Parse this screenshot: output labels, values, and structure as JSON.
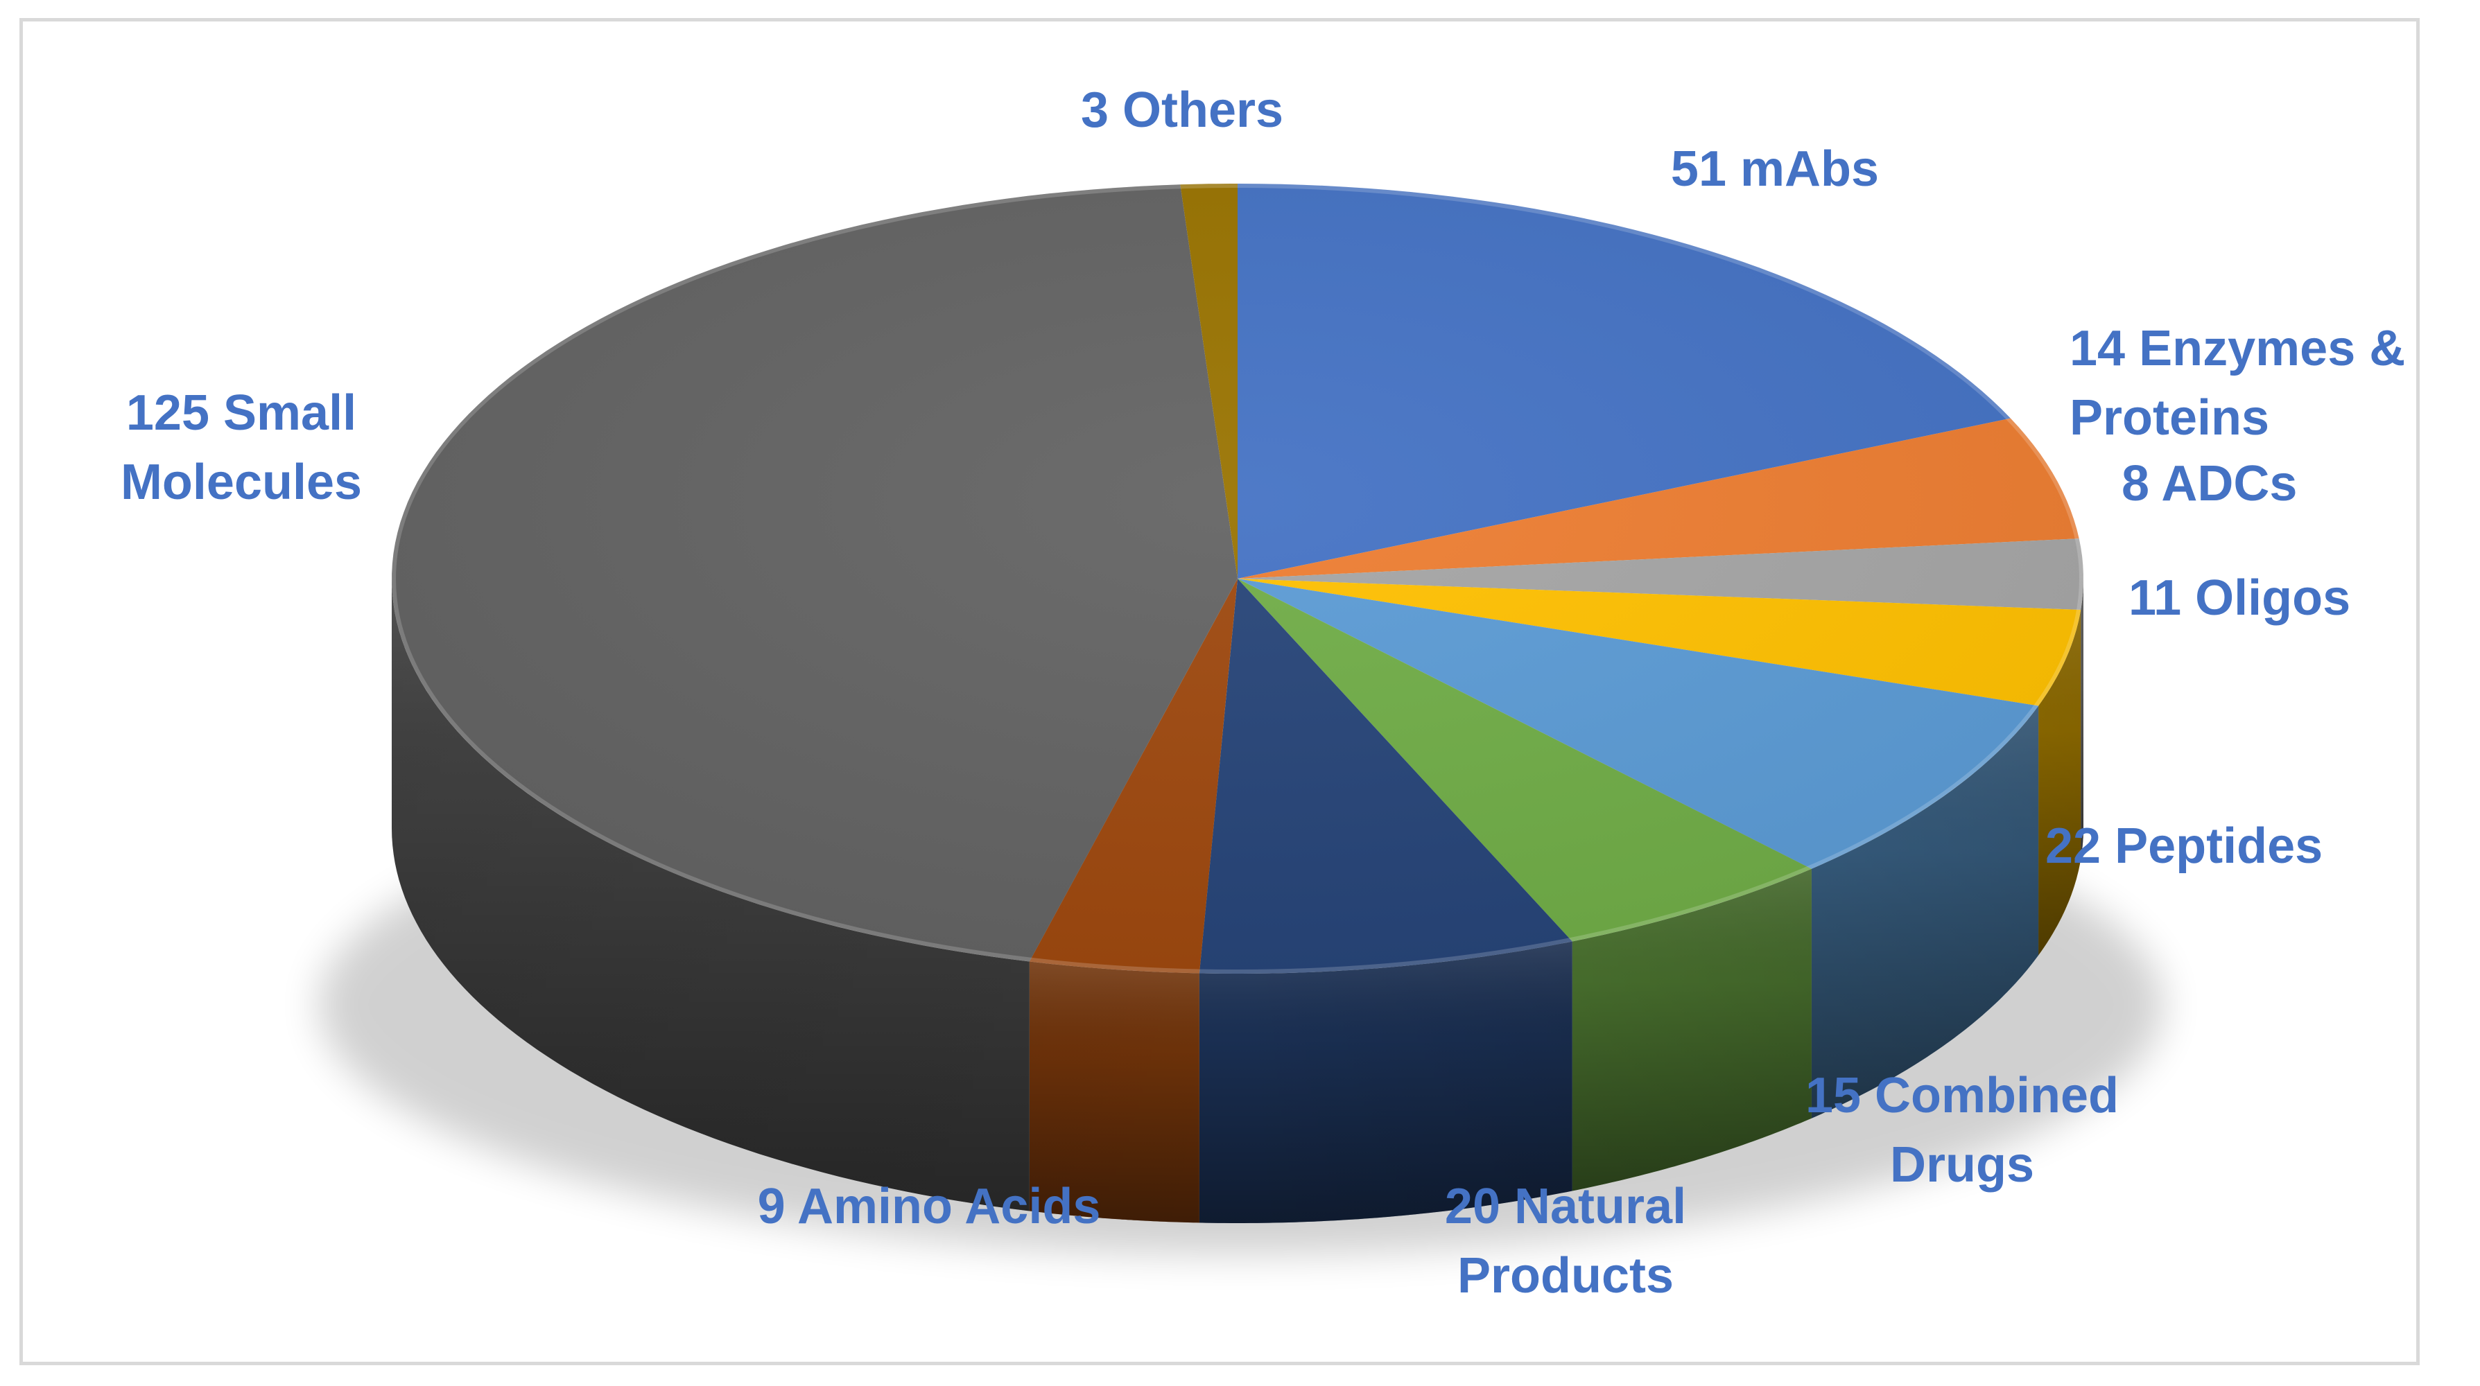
{
  "chart_data": {
    "type": "pie",
    "style": "3d",
    "title": "",
    "label_color": "#4472c4",
    "slices": [
      {
        "name": "mAbs",
        "value": 51,
        "label_lines": [
          "51 mAbs"
        ],
        "color": "#4472c4"
      },
      {
        "name": "Enzymes & Proteins",
        "value": 14,
        "label_lines": [
          "14 Enzymes &",
          "Proteins"
        ],
        "color": "#ed7d31"
      },
      {
        "name": "ADCs",
        "value": 8,
        "label_lines": [
          "8 ADCs"
        ],
        "color": "#a5a5a5"
      },
      {
        "name": "Oligos",
        "value": 11,
        "label_lines": [
          "11 Oligos"
        ],
        "color": "#ffc000"
      },
      {
        "name": "Peptides",
        "value": 22,
        "label_lines": [
          "22 Peptides"
        ],
        "color": "#5b9bd5"
      },
      {
        "name": "Combined Drugs",
        "value": 15,
        "label_lines": [
          "15 Combined",
          "Drugs"
        ],
        "color": "#70ad47"
      },
      {
        "name": "Natural Products",
        "value": 20,
        "label_lines": [
          "20 Natural",
          "Products"
        ],
        "color": "#264478"
      },
      {
        "name": "Amino Acids",
        "value": 9,
        "label_lines": [
          "9 Amino Acids"
        ],
        "color": "#9e480e"
      },
      {
        "name": "Small Molecules",
        "value": 125,
        "label_lines": [
          "125 Small",
          "Molecules"
        ],
        "color": "#636363"
      },
      {
        "name": "Others",
        "value": 3,
        "label_lines": [
          "3 Others"
        ],
        "color": "#997300"
      }
    ]
  }
}
